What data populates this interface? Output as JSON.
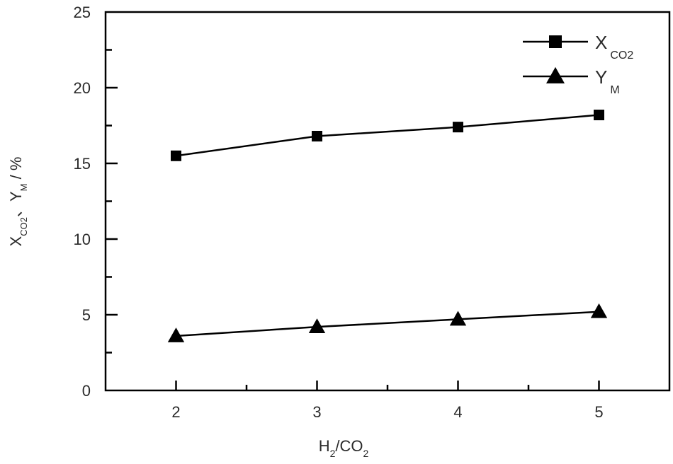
{
  "chart_data": {
    "type": "line",
    "title": "",
    "xlabel": "H2/CO2",
    "xlabel_parts": {
      "main1": "H",
      "sub1": "2",
      "main2": "/CO",
      "sub2": "2"
    },
    "ylabel": "X_CO2、Y_M / %",
    "ylabel_parts": {
      "x_main": "X",
      "x_sub": "CO2",
      "sep": "、",
      "y_main": "Y",
      "y_sub": "M",
      "unit": " / %"
    },
    "x": [
      2,
      3,
      4,
      5
    ],
    "xlim": [
      1.5,
      5.5
    ],
    "ylim": [
      0,
      25
    ],
    "xticks": [
      2,
      3,
      4,
      5
    ],
    "xminor": [
      2.5,
      3.5,
      4.5
    ],
    "yticks": [
      0,
      5,
      10,
      15,
      20,
      25
    ],
    "yminor": [
      2.5,
      7.5,
      12.5,
      17.5,
      22.5
    ],
    "grid": false,
    "legend_position": "upper right",
    "series": [
      {
        "name": "X_CO2",
        "label_main": "X",
        "label_sub": "CO2",
        "marker": "square",
        "color": "#000000",
        "values": [
          15.5,
          16.8,
          17.4,
          18.2
        ]
      },
      {
        "name": "Y_M",
        "label_main": "Y",
        "label_sub": "M",
        "marker": "triangle",
        "color": "#000000",
        "values": [
          3.6,
          4.2,
          4.7,
          5.2
        ]
      }
    ]
  }
}
